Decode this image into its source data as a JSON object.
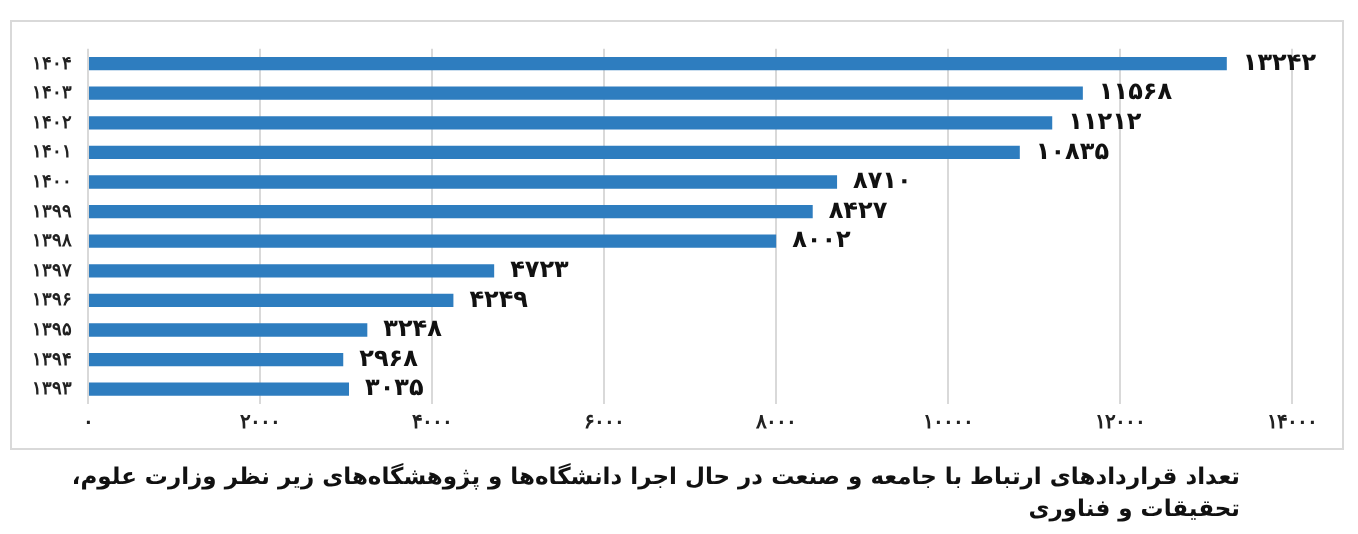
{
  "chart_data": {
    "type": "bar",
    "orientation": "horizontal",
    "categories": [
      "۱۴۰۴",
      "۱۴۰۳",
      "۱۴۰۲",
      "۱۴۰۱",
      "۱۴۰۰",
      "۱۳۹۹",
      "۱۳۹۸",
      "۱۳۹۷",
      "۱۳۹۶",
      "۱۳۹۵",
      "۱۳۹۴",
      "۱۳۹۳"
    ],
    "values": [
      13242,
      11568,
      11212,
      10835,
      8710,
      8427,
      8002,
      4723,
      4249,
      3248,
      2968,
      3035
    ],
    "value_labels": [
      "۱۳۲۴۲",
      "۱۱۵۶۸",
      "۱۱۲۱۲",
      "۱۰۸۳۵",
      "۸۷۱۰",
      "۸۴۲۷",
      "۸۰۰۲",
      "۴۷۲۳",
      "۴۲۴۹",
      "۳۲۴۸",
      "۲۹۶۸",
      "۳۰۳۵"
    ],
    "color": "#2e7dbf",
    "xlim": [
      0,
      14000
    ],
    "xticks": [
      {
        "value": 0,
        "label": "۰"
      },
      {
        "value": 2000,
        "label": "۲۰۰۰"
      },
      {
        "value": 4000,
        "label": "۴۰۰۰"
      },
      {
        "value": 6000,
        "label": "۶۰۰۰"
      },
      {
        "value": 8000,
        "label": "۸۰۰۰"
      },
      {
        "value": 10000,
        "label": "۱۰۰۰۰"
      },
      {
        "value": 12000,
        "label": "۱۲۰۰۰"
      },
      {
        "value": 14000,
        "label": "۱۴۰۰۰"
      }
    ],
    "grid": "x",
    "legend": false,
    "annotations": [
      "تعداد قراردادهای ارتباط با جامعه و صنعت در حال اجرا دانشگاه‌ها و پژوهشگاه‌های زیر نظر وزارت علوم، تحقیقات و فناوری"
    ]
  }
}
